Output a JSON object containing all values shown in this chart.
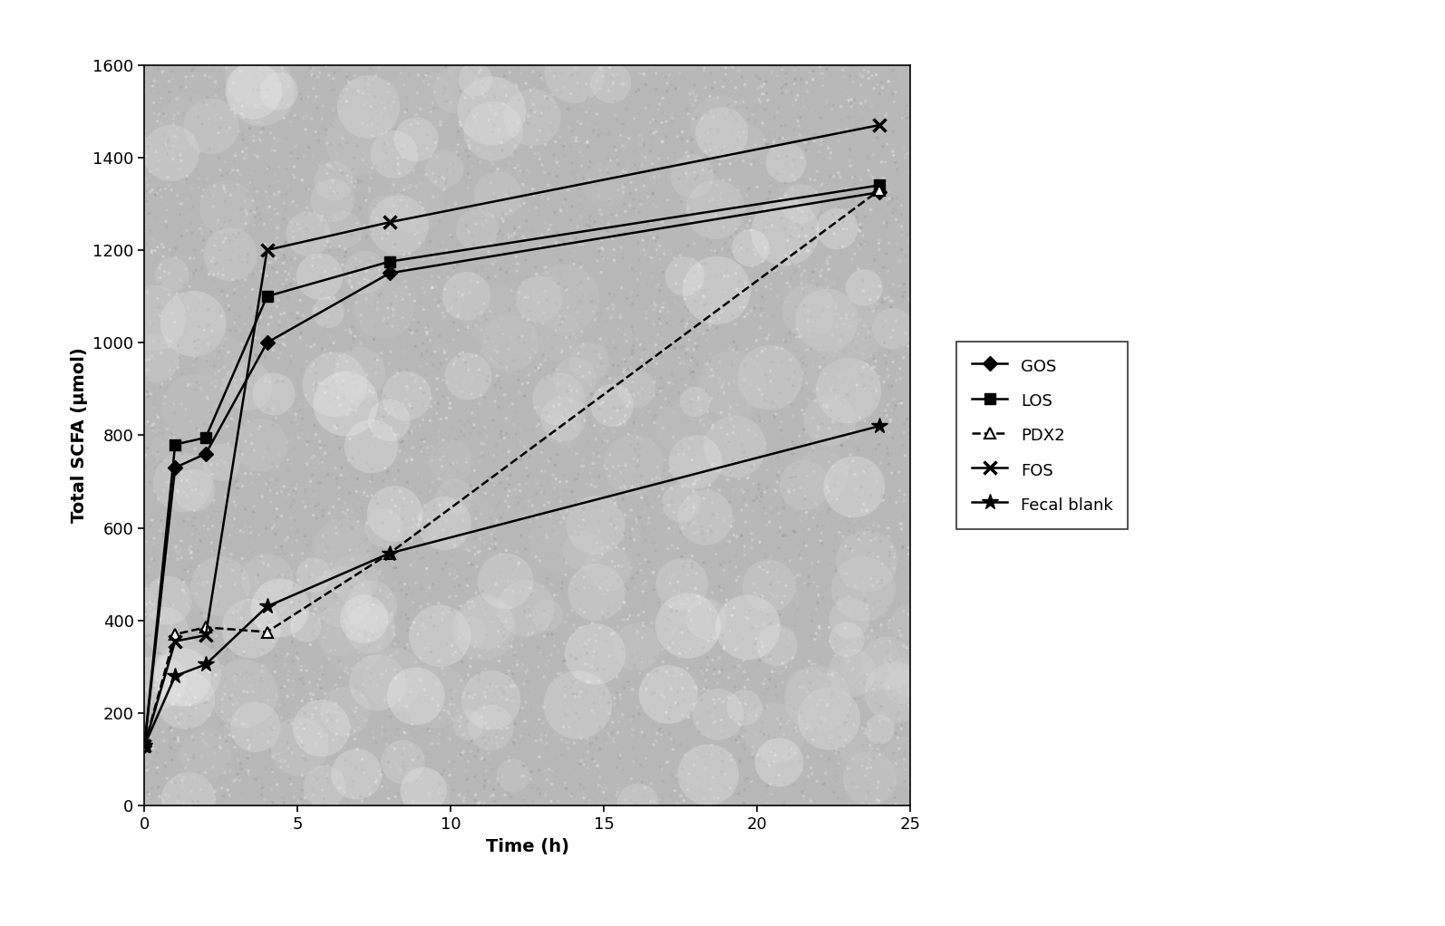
{
  "time": [
    0,
    1,
    2,
    4,
    8,
    24
  ],
  "GOS": [
    130,
    730,
    760,
    1000,
    1150,
    1325
  ],
  "LOS": [
    130,
    780,
    795,
    1100,
    1175,
    1340
  ],
  "PDX2": [
    130,
    370,
    385,
    375,
    545,
    1330
  ],
  "FOS": [
    130,
    355,
    368,
    1200,
    1260,
    1470
  ],
  "Fecal_blank": [
    130,
    280,
    305,
    430,
    545,
    820
  ],
  "xlabel": "Time (h)",
  "ylabel": "Total SCFA (μmol)",
  "xlim": [
    0,
    25
  ],
  "ylim": [
    0,
    1600
  ],
  "xticks": [
    0,
    5,
    10,
    15,
    20,
    25
  ],
  "yticks": [
    0,
    200,
    400,
    600,
    800,
    1000,
    1200,
    1400,
    1600
  ],
  "bg_color": "#b8b8b8",
  "legend_labels": [
    "GOS",
    "LOS",
    "PDX2",
    "FOS",
    "Fecal blank"
  ],
  "axis_fontsize": 14,
  "tick_fontsize": 13,
  "legend_fontsize": 13,
  "figwidth": 15.94,
  "figheight": 10.22,
  "dpi": 100
}
